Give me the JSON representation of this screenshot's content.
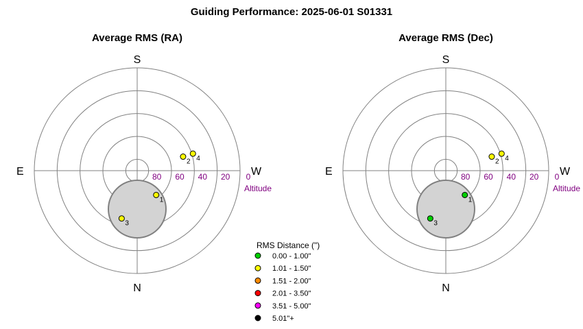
{
  "title": "Guiding Performance: 2025-06-01 S01331",
  "compass": {
    "north": "N",
    "south": "S",
    "east": "E",
    "west": "W"
  },
  "altitude_label": "Altitude",
  "altitude_ticks": [
    "80",
    "60",
    "40",
    "20",
    "0"
  ],
  "chart_data": [
    {
      "type": "scatter",
      "title": "Average RMS (RA)",
      "projection": "polar (azimuth / altitude)",
      "radial_axis": {
        "label": "Altitude",
        "ticks": [
          80,
          60,
          40,
          20,
          0
        ]
      },
      "points": [
        {
          "label": "1",
          "azimuth": 322,
          "altitude": 63,
          "rms_category": "1.01 - 1.50\"",
          "color": "#ffff00"
        },
        {
          "label": "2",
          "azimuth": 253,
          "altitude": 48,
          "rms_category": "1.01 - 1.50\"",
          "color": "#ffff00"
        },
        {
          "label": "3",
          "azimuth": 18,
          "altitude": 46,
          "rms_category": "1.01 - 1.50\"",
          "color": "#ffff00"
        },
        {
          "label": "4",
          "azimuth": 253,
          "altitude": 39,
          "rms_category": "1.01 - 1.50\"",
          "color": "#ffff00"
        }
      ],
      "exclusion_zone": {
        "description": "shaded zone",
        "color": "#d3d3d3"
      }
    },
    {
      "type": "scatter",
      "title": "Average RMS (Dec)",
      "projection": "polar (azimuth / altitude)",
      "radial_axis": {
        "label": "Altitude",
        "ticks": [
          80,
          60,
          40,
          20,
          0
        ]
      },
      "points": [
        {
          "label": "1",
          "azimuth": 322,
          "altitude": 63,
          "rms_category": "0.00 - 1.00\"",
          "color": "#00d000"
        },
        {
          "label": "2",
          "azimuth": 253,
          "altitude": 48,
          "rms_category": "1.01 - 1.50\"",
          "color": "#ffff00"
        },
        {
          "label": "3",
          "azimuth": 18,
          "altitude": 46,
          "rms_category": "0.00 - 1.00\"",
          "color": "#00d000"
        },
        {
          "label": "4",
          "azimuth": 253,
          "altitude": 39,
          "rms_category": "1.01 - 1.50\"",
          "color": "#ffff00"
        }
      ],
      "exclusion_zone": {
        "description": "shaded zone",
        "color": "#d3d3d3"
      }
    }
  ],
  "legend": {
    "title": "RMS Distance (\")",
    "items": [
      {
        "label": "0.00 - 1.00\"",
        "color": "#00d000"
      },
      {
        "label": "1.01 - 1.50\"",
        "color": "#ffff00"
      },
      {
        "label": "1.51 - 2.00\"",
        "color": "#ff8c00"
      },
      {
        "label": "2.01 - 3.50\"",
        "color": "#ff0000"
      },
      {
        "label": "3.51 - 5.00\"",
        "color": "#ff00ff"
      },
      {
        "label": "5.01\"+",
        "color": "#000000"
      }
    ]
  }
}
